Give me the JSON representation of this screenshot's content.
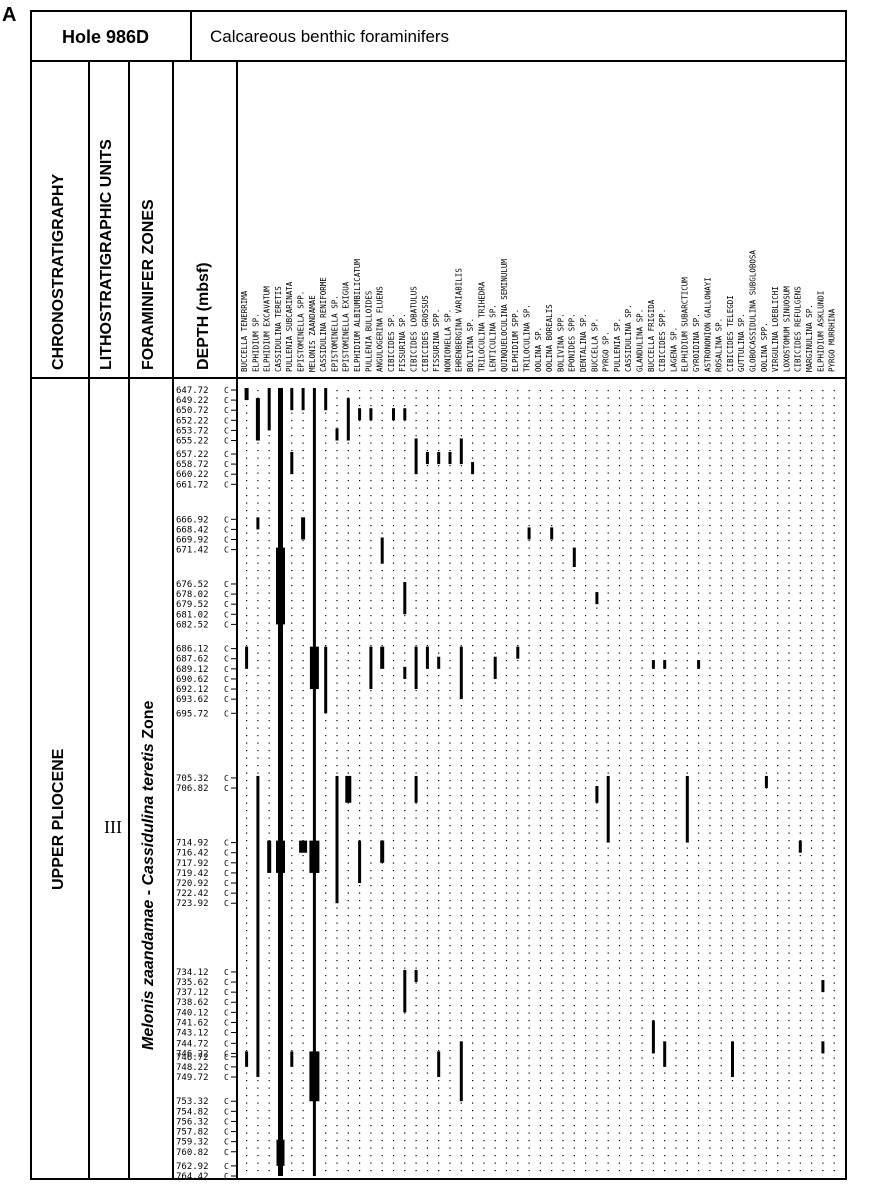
{
  "panel_letter": "A",
  "header": {
    "hole": "Hole 986D",
    "group": "Calcareous benthic foraminifers"
  },
  "column_headers": {
    "chronostratigraphy": "CHRONOSTRATIGRAPHY",
    "lithostratigraphic_units": "LITHOSTRATIGRAPHIC UNITS",
    "foraminifer_zones": "FORAMINIFER ZONES",
    "depth": "DEPTH (mbsf)"
  },
  "chronostratigraphy_value": "UPPER PLIOCENE",
  "lith_unit_value": "III",
  "zone": {
    "part1": "Melonis zaandamae",
    "dash": " - ",
    "part2": "Cassidulina teretis",
    "suffix": " Zone"
  },
  "chart_data": {
    "type": "table",
    "title": "Hole 986D Calcareous benthic foraminifers",
    "ylabel": "DEPTH (mbsf)",
    "ylim": [
      647.72,
      764.42
    ],
    "depths": [
      "647.72",
      "649.22",
      "650.72",
      "652.22",
      "653.72",
      "655.22",
      "657.22",
      "658.72",
      "660.22",
      "661.72",
      "666.92",
      "668.42",
      "669.92",
      "671.42",
      "676.52",
      "678.02",
      "679.52",
      "681.02",
      "682.52",
      "686.12",
      "687.62",
      "689.12",
      "690.62",
      "692.12",
      "693.62",
      "695.72",
      "705.32",
      "706.82",
      "714.92",
      "716.42",
      "717.92",
      "719.42",
      "720.92",
      "722.42",
      "723.92",
      "734.12",
      "735.62",
      "737.12",
      "738.62",
      "740.12",
      "741.62",
      "743.12",
      "744.72",
      "746.22",
      "746.72",
      "748.22",
      "749.72",
      "753.32",
      "754.82",
      "756.32",
      "757.82",
      "759.32",
      "760.82",
      "762.92",
      "764.42"
    ],
    "species": [
      "BUCCELLA TENERRIMA",
      "ELPHIDIUM SP.",
      "ELPHIDIUM EXCAVATUM",
      "CASSIDULINA TERETIS",
      "PULLENIA SUBCARINATA",
      "EPISTOMINELLA SPP.",
      "MELONIS ZAANDAMAE",
      "CASSIDULINA RENIFORME",
      "EPISTOMINELLA SP.",
      "EPISTOMINELLA EXIGUA",
      "ELPHIDIUM ALBIUMBILICATUM",
      "PULLENIA BULLOIDES",
      "ANGULOGERINA FLUENS",
      "CIBICIDES SP.",
      "FISSURINA SP.",
      "CIBICIDES LOBATULUS",
      "CIBICIDES GROSSUS",
      "FISSURINA SPP.",
      "NONIONELLA SP.",
      "EHRENBERGINA VARIABILIS",
      "BOLIVINA SP.",
      "TRILOCULINA TRIHEDRA",
      "LENTICULINA SP.",
      "QUINQUELOCULINA SEMINULUM",
      "ELPHIDIUM SPP.",
      "TRILOCULINA SP.",
      "OOLINA SP.",
      "OOLINA BOREALIS",
      "BOLIVINA SPP.",
      "EPONIDES SPP.",
      "DENTALINA SP.",
      "BUCCELLA SP.",
      "PYRGO SP.",
      "PULLENIA SP.",
      "CASSIDULINA SP.",
      "GLANDULINA SP.",
      "BUCCELLA FRIGIDA",
      "CIBICIDES SPP.",
      "LAGENA SP.",
      "ELPHIDIUM SUBARCTICUM",
      "GYROIDINA SP.",
      "ASTRONONION GALLOWAYI",
      "ROSALINA SP.",
      "CIBICIDES TELEGDI",
      "GUTTULINA SP.",
      "GLOBOCASSIDULINA SUBGLOBOSA",
      "OOLINA SPP.",
      "VIRGULINA LOEBLICHI",
      "LOXOSTOMUM SINUOSUM",
      "CIBICIDES REFULGENS",
      "MARGINULINA SP.",
      "ELPHIDIUM ASKLUNDI",
      "PYRGO MURRHINA"
    ],
    "occurrence_legend": "column of dots = absent; filled block = present; block width indicates relative abundance"
  }
}
